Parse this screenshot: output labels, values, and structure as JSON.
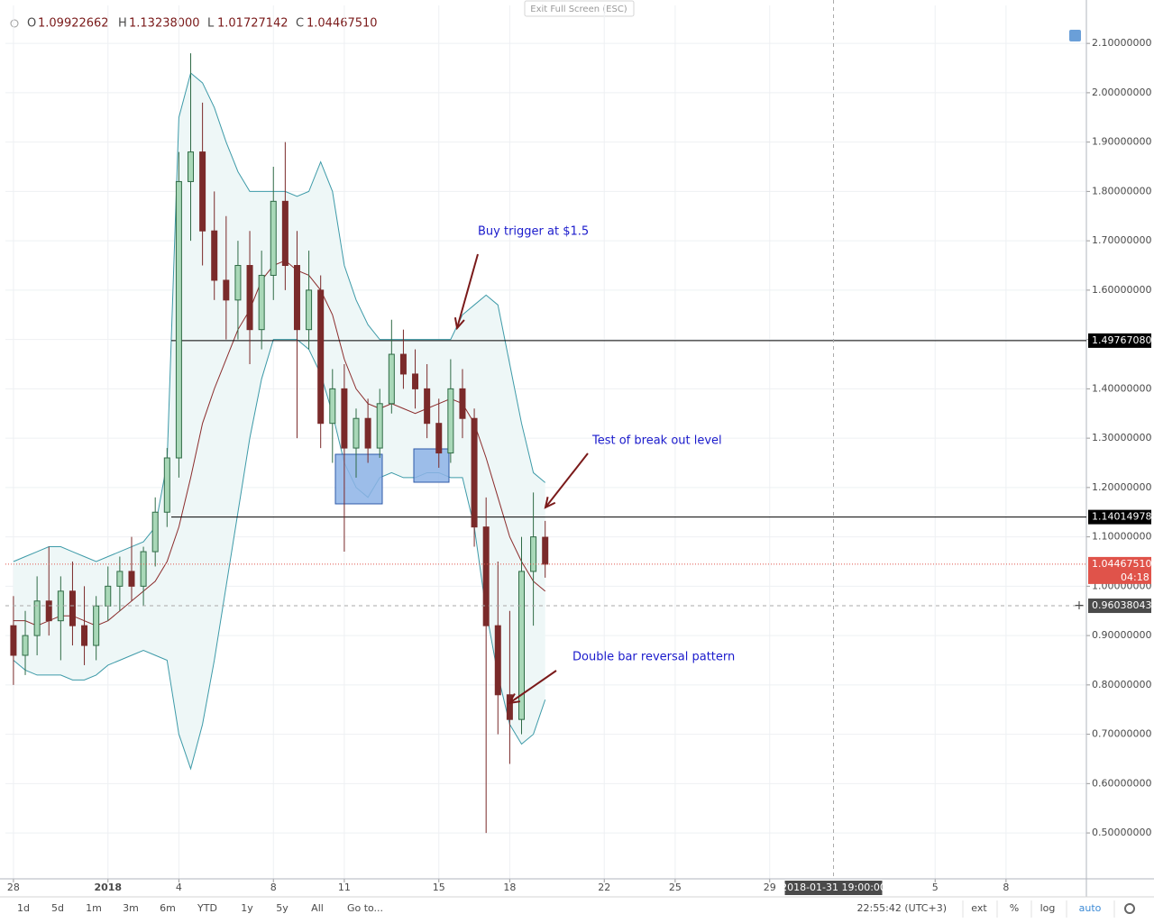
{
  "chart_data": {
    "type": "candlestick",
    "header": {
      "o_label": "O",
      "o": "1.09922662",
      "h_label": "H",
      "h": "1.13238000",
      "l_label": "L",
      "l": "1.01727142",
      "c_label": "C",
      "c": "1.04467510"
    },
    "exit_fullscreen": "Exit Full Screen (ESC)",
    "x": [
      0,
      0.5,
      1,
      1.5,
      2,
      2.5,
      3,
      3.5,
      4,
      4.5,
      5,
      5.5,
      6,
      6.5,
      7,
      7.5,
      8,
      8.5,
      9,
      9.5,
      10,
      10.5,
      11,
      11.5,
      12,
      12.5,
      13,
      13.5,
      14,
      14.5,
      15,
      15.5,
      16,
      16.5,
      17,
      17.5,
      18,
      18.5,
      19,
      19.5,
      20,
      20.5,
      21,
      21.5,
      22,
      22.5
    ],
    "open": [
      0.92,
      0.86,
      0.9,
      0.97,
      0.93,
      0.99,
      0.92,
      0.88,
      0.96,
      1.0,
      1.03,
      1.0,
      1.07,
      1.15,
      1.26,
      1.82,
      1.88,
      1.72,
      1.62,
      1.58,
      1.65,
      1.52,
      1.63,
      1.78,
      1.65,
      1.52,
      1.6,
      1.33,
      1.4,
      1.28,
      1.34,
      1.28,
      1.37,
      1.47,
      1.43,
      1.4,
      1.33,
      1.27,
      1.4,
      1.34,
      1.12,
      0.92,
      0.78,
      0.73,
      1.03,
      1.09922662
    ],
    "high": [
      0.98,
      0.95,
      1.02,
      1.08,
      1.02,
      1.05,
      1.0,
      0.98,
      1.04,
      1.06,
      1.1,
      1.08,
      1.18,
      1.28,
      1.88,
      2.08,
      1.98,
      1.8,
      1.75,
      1.7,
      1.72,
      1.68,
      1.85,
      1.9,
      1.72,
      1.68,
      1.63,
      1.44,
      1.45,
      1.36,
      1.38,
      1.4,
      1.54,
      1.52,
      1.48,
      1.45,
      1.38,
      1.46,
      1.44,
      1.36,
      1.18,
      1.05,
      0.95,
      1.1,
      1.19,
      1.13238
    ],
    "low": [
      0.8,
      0.82,
      0.86,
      0.9,
      0.85,
      0.88,
      0.84,
      0.85,
      0.93,
      0.95,
      0.97,
      0.96,
      1.04,
      1.12,
      1.22,
      1.7,
      1.65,
      1.58,
      1.5,
      1.5,
      1.45,
      1.48,
      1.58,
      1.6,
      1.3,
      1.48,
      1.28,
      1.25,
      1.07,
      1.22,
      1.25,
      1.26,
      1.35,
      1.4,
      1.36,
      1.3,
      1.24,
      1.25,
      1.3,
      1.08,
      0.5,
      0.7,
      0.64,
      0.7,
      0.92,
      1.01727142
    ],
    "close": [
      0.86,
      0.9,
      0.97,
      0.93,
      0.99,
      0.92,
      0.88,
      0.96,
      1.0,
      1.03,
      1.0,
      1.07,
      1.15,
      1.26,
      1.82,
      1.88,
      1.72,
      1.62,
      1.58,
      1.65,
      1.52,
      1.63,
      1.78,
      1.65,
      1.52,
      1.6,
      1.33,
      1.4,
      1.28,
      1.34,
      1.28,
      1.37,
      1.47,
      1.43,
      1.4,
      1.33,
      1.27,
      1.4,
      1.34,
      1.12,
      0.92,
      0.78,
      0.73,
      1.03,
      1.1,
      1.0446751
    ],
    "colors": {
      "up": "#a9d8b8",
      "up_border": "#2f6b46",
      "down": "#7a2a2a",
      "band": "#3d9aa8",
      "band_fill": "#eef7f7",
      "middle": "#8b2c2c"
    },
    "bands": {
      "upper": [
        1.05,
        1.06,
        1.07,
        1.08,
        1.08,
        1.07,
        1.06,
        1.05,
        1.06,
        1.07,
        1.08,
        1.09,
        1.12,
        1.25,
        1.95,
        2.04,
        2.02,
        1.97,
        1.9,
        1.84,
        1.8,
        1.8,
        1.8,
        1.8,
        1.79,
        1.8,
        1.86,
        1.8,
        1.65,
        1.58,
        1.53,
        1.5,
        1.5,
        1.5,
        1.5,
        1.5,
        1.5,
        1.5,
        1.55,
        1.57,
        1.59,
        1.57,
        1.45,
        1.33,
        1.23,
        1.21
      ],
      "middle": [
        0.93,
        0.93,
        0.92,
        0.93,
        0.94,
        0.94,
        0.93,
        0.92,
        0.93,
        0.95,
        0.97,
        0.99,
        1.01,
        1.05,
        1.12,
        1.22,
        1.33,
        1.4,
        1.46,
        1.52,
        1.56,
        1.62,
        1.65,
        1.66,
        1.64,
        1.63,
        1.6,
        1.55,
        1.46,
        1.4,
        1.37,
        1.36,
        1.37,
        1.36,
        1.35,
        1.36,
        1.37,
        1.38,
        1.37,
        1.33,
        1.26,
        1.18,
        1.1,
        1.05,
        1.01,
        0.99
      ],
      "lower": [
        0.85,
        0.83,
        0.82,
        0.82,
        0.82,
        0.81,
        0.81,
        0.82,
        0.84,
        0.85,
        0.86,
        0.87,
        0.86,
        0.85,
        0.7,
        0.63,
        0.72,
        0.85,
        1.0,
        1.15,
        1.3,
        1.42,
        1.5,
        1.5,
        1.5,
        1.48,
        1.43,
        1.35,
        1.25,
        1.2,
        1.18,
        1.22,
        1.23,
        1.22,
        1.22,
        1.23,
        1.23,
        1.22,
        1.22,
        1.12,
        0.95,
        0.82,
        0.72,
        0.68,
        0.7,
        0.77
      ]
    },
    "xlim": [
      -0.34,
      45.4
    ],
    "xticks": [
      {
        "value": 0,
        "label": "28"
      },
      {
        "value": 4,
        "label": "2018"
      },
      {
        "value": 7,
        "label": "4"
      },
      {
        "value": 11,
        "label": "8"
      },
      {
        "value": 14,
        "label": "11"
      },
      {
        "value": 18,
        "label": "15"
      },
      {
        "value": 21,
        "label": "18"
      },
      {
        "value": 25,
        "label": "22"
      },
      {
        "value": 28,
        "label": "25"
      },
      {
        "value": 32,
        "label": "29"
      },
      {
        "value": 39,
        "label": "5"
      },
      {
        "value": 42,
        "label": "8"
      }
    ],
    "ylim": [
      0.407,
      2.177
    ],
    "yticks": [
      {
        "value": 0.5,
        "label": "0.50000000"
      },
      {
        "value": 0.6,
        "label": "0.60000000"
      },
      {
        "value": 0.7,
        "label": "0.70000000"
      },
      {
        "value": 0.8,
        "label": "0.80000000"
      },
      {
        "value": 0.9,
        "label": "0.90000000"
      },
      {
        "value": 1.0,
        "label": "1.00000000"
      },
      {
        "value": 1.1,
        "label": "1.10000000"
      },
      {
        "value": 1.2,
        "label": "1.20000000"
      },
      {
        "value": 1.3,
        "label": "1.30000000"
      },
      {
        "value": 1.4,
        "label": "1.40000000"
      },
      {
        "value": 1.5,
        "label": "1.50000000"
      },
      {
        "value": 1.6,
        "label": "1.60000000"
      },
      {
        "value": 1.7,
        "label": "1.70000000"
      },
      {
        "value": 1.8,
        "label": "1.80000000"
      },
      {
        "value": 1.9,
        "label": "1.90000000"
      },
      {
        "value": 2.0,
        "label": "2.00000000"
      },
      {
        "value": 2.1,
        "label": "2.10000000"
      }
    ],
    "grid": true,
    "levels": [
      {
        "value": 1.4976708,
        "label": "1.49767080"
      },
      {
        "value": 1.14014978,
        "label": "1.14014978"
      }
    ],
    "last_price": {
      "value": 1.0446751,
      "label": "1.04467510",
      "color": "#e0534a"
    },
    "countdown": "04:18",
    "crosshair": {
      "x": 34.7,
      "x_label": "2018-01-31 19:00:00",
      "y": 0.96038043,
      "y_label": "0.96038043"
    },
    "annotations": [
      "Buy trigger at $1.5",
      "Test of break out level",
      "Double bar reversal pattern"
    ]
  },
  "toolbar": {
    "ranges": [
      "1d",
      "5d",
      "1m",
      "3m",
      "6m",
      "YTD",
      "1y",
      "5y",
      "All"
    ],
    "goto": "Go to...",
    "clock": "22:55:42 (UTC+3)",
    "options": [
      "ext",
      "%",
      "log",
      "auto"
    ]
  }
}
